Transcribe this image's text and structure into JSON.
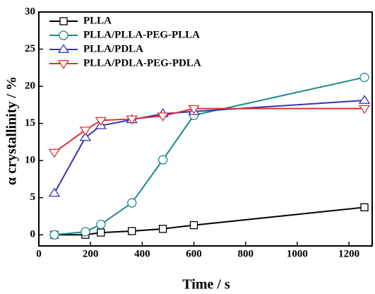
{
  "chart_data": {
    "type": "line",
    "x_label": "Time / s",
    "y_label": "α crystallinity / %",
    "x": [
      60,
      180,
      240,
      360,
      480,
      600,
      1260
    ],
    "series": [
      {
        "name": "PLLA",
        "color": "#000000",
        "marker": "square",
        "values": [
          0,
          0,
          0.3,
          0.5,
          0.8,
          1.3,
          3.7
        ]
      },
      {
        "name": "PLLA/PLLA-PEG-PLLA",
        "color": "#1a8a8a",
        "marker": "circle",
        "values": [
          0,
          0.4,
          1.4,
          4.3,
          10.1,
          16.1,
          21.2
        ]
      },
      {
        "name": "PLLA/PDLA",
        "color": "#3535b0",
        "marker": "triangle-up",
        "values": [
          5.6,
          13.1,
          14.7,
          15.5,
          16.3,
          16.6,
          18.1
        ]
      },
      {
        "name": "PLLA/PDLA-PEG-PDLA",
        "color": "#e03030",
        "marker": "triangle-down",
        "values": [
          11.1,
          14.1,
          15.4,
          15.6,
          16.0,
          17.0,
          17.0
        ]
      }
    ],
    "xlim": [
      0,
      1290
    ],
    "ylim": [
      -1.5,
      30
    ],
    "xticks": [
      0,
      200,
      400,
      600,
      800,
      1000,
      1200
    ],
    "yticks": [
      0,
      5,
      10,
      15,
      20,
      25,
      30
    ],
    "legend": "upper-left"
  }
}
